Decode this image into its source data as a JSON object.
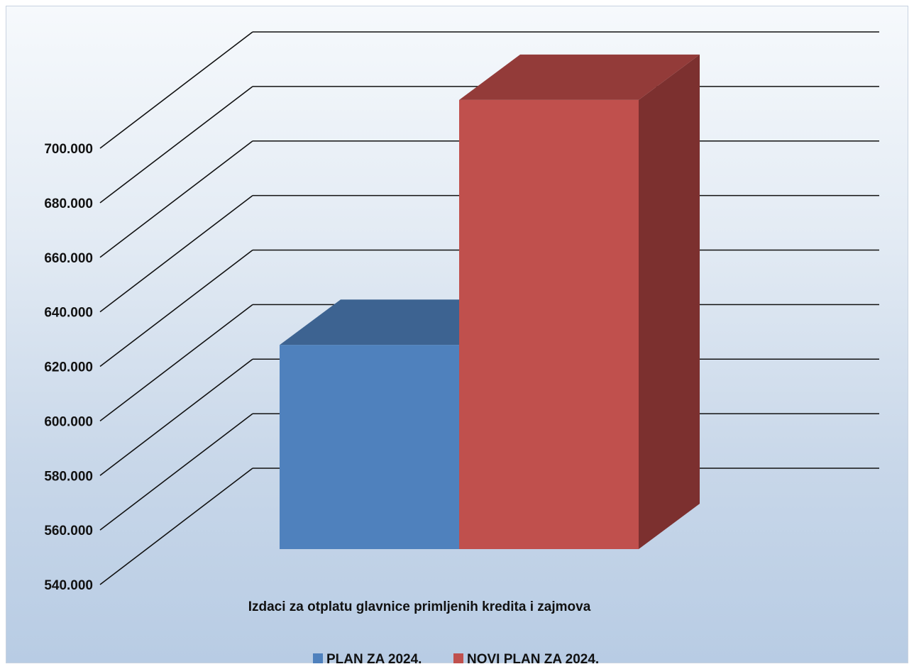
{
  "chart_data": {
    "type": "bar",
    "style": "3d-clustered",
    "categories": [
      "Izdaci za otplatu glavnice primljenih kredita i zajmova"
    ],
    "series": [
      {
        "name": "PLAN ZA 2024.",
        "values": [
          610500
        ],
        "color": "#4f81bd",
        "top_color": "#3d6391",
        "side_color": "#385d8a"
      },
      {
        "name": "NOVI PLAN ZA 2024.",
        "values": [
          697500
        ],
        "color": "#c0504d",
        "top_color": "#933b39",
        "side_color": "#7c302f"
      }
    ],
    "y_ticks": [
      "540.000",
      "560.000",
      "580.000",
      "600.000",
      "620.000",
      "640.000",
      "660.000",
      "680.000",
      "700.000"
    ],
    "ylim": [
      540000,
      700000
    ],
    "grid": true,
    "legend_position": "bottom"
  }
}
